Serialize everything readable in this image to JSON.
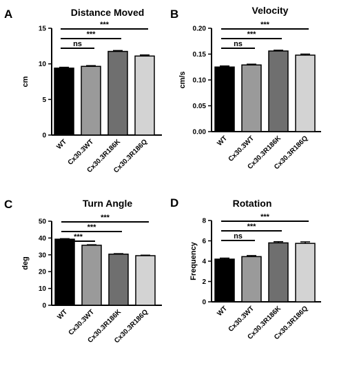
{
  "colors": {
    "bar_fills": [
      "#000000",
      "#9a9a9a",
      "#6f6f6f",
      "#d3d3d3"
    ],
    "axis": "#000000"
  },
  "chart_data": [
    {
      "panel": "A",
      "type": "bar",
      "title": "Distance Moved",
      "ylabel": "cm",
      "categories": [
        "WT",
        "Cx30.3WT",
        "Cx30.3R186K",
        "Cx30.3R186Q"
      ],
      "values": [
        9.4,
        9.65,
        11.75,
        11.1
      ],
      "errors": [
        0.12,
        0.1,
        0.12,
        0.15
      ],
      "ylim": [
        0,
        15
      ],
      "yticks": [
        0,
        5,
        10,
        15
      ],
      "significance": [
        {
          "from": 0,
          "to": 1,
          "label": "ns"
        },
        {
          "from": 0,
          "to": 2,
          "label": "***"
        },
        {
          "from": 0,
          "to": 3,
          "label": "***"
        }
      ]
    },
    {
      "panel": "B",
      "type": "bar",
      "title": "Velocity",
      "ylabel": "cm/s",
      "categories": [
        "WT",
        "Cx30.3WT",
        "Cx30.3R186K",
        "Cx30.3R186Q"
      ],
      "values": [
        0.125,
        0.129,
        0.156,
        0.148
      ],
      "errors": [
        0.002,
        0.0015,
        0.0015,
        0.002
      ],
      "ylim": [
        0,
        0.2
      ],
      "yticks": [
        0.0,
        0.05,
        0.1,
        0.15,
        0.2
      ],
      "ytick_labels": [
        "0.00",
        "0.05",
        "0.10",
        "0.15",
        "0.20"
      ],
      "significance": [
        {
          "from": 0,
          "to": 1,
          "label": "ns"
        },
        {
          "from": 0,
          "to": 2,
          "label": "***"
        },
        {
          "from": 0,
          "to": 3,
          "label": "***"
        }
      ]
    },
    {
      "panel": "C",
      "type": "bar",
      "title": "Turn Angle",
      "ylabel": "deg",
      "categories": [
        "WT",
        "Cx30.3WT",
        "Cx30.3R186K",
        "Cx30.3R186Q"
      ],
      "values": [
        39.3,
        35.7,
        30.4,
        29.5
      ],
      "errors": [
        0.3,
        0.3,
        0.3,
        0.3
      ],
      "ylim": [
        0,
        50
      ],
      "yticks": [
        0,
        10,
        20,
        30,
        40,
        50
      ],
      "significance": [
        {
          "from": 0,
          "to": 1,
          "label": "***"
        },
        {
          "from": 0,
          "to": 2,
          "label": "***"
        },
        {
          "from": 0,
          "to": 3,
          "label": "***"
        }
      ]
    },
    {
      "panel": "D",
      "type": "bar",
      "title": "Rotation",
      "ylabel": "Frequency",
      "categories": [
        "WT",
        "Cx30.3WT",
        "Cx30.3R186K",
        "Cx30.3R186Q"
      ],
      "values": [
        4.2,
        4.45,
        5.8,
        5.75
      ],
      "errors": [
        0.1,
        0.1,
        0.12,
        0.15
      ],
      "ylim": [
        0,
        8
      ],
      "yticks": [
        0,
        2,
        4,
        6,
        8
      ],
      "significance": [
        {
          "from": 0,
          "to": 1,
          "label": "ns"
        },
        {
          "from": 0,
          "to": 2,
          "label": "***"
        },
        {
          "from": 0,
          "to": 3,
          "label": "***"
        }
      ]
    }
  ]
}
